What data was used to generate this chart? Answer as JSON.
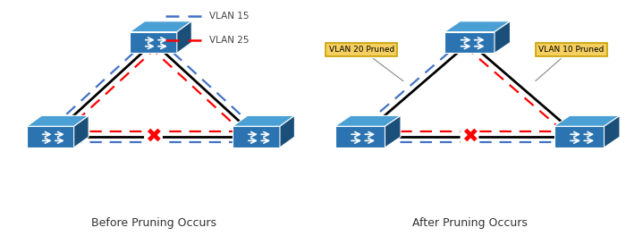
{
  "title_left": "Before Pruning Occurs",
  "title_right": "After Pruning Occurs",
  "legend_vlan15_color": "#4472C4",
  "legend_vlan25_color": "#FF0000",
  "switch_face": "#2B74B1",
  "switch_top": "#4A9FD4",
  "switch_side": "#1A4F7A",
  "annotation_bg": "#F5D060",
  "annotation_border": "#C8A000",
  "vlan15_label": "VLAN 15",
  "vlan25_label": "VLAN 25",
  "pruned_label_left": "VLAN 20 Pruned",
  "pruned_label_right": "VLAN 10 Pruned",
  "title_fontsize": 9,
  "legend_fontsize": 7.5
}
